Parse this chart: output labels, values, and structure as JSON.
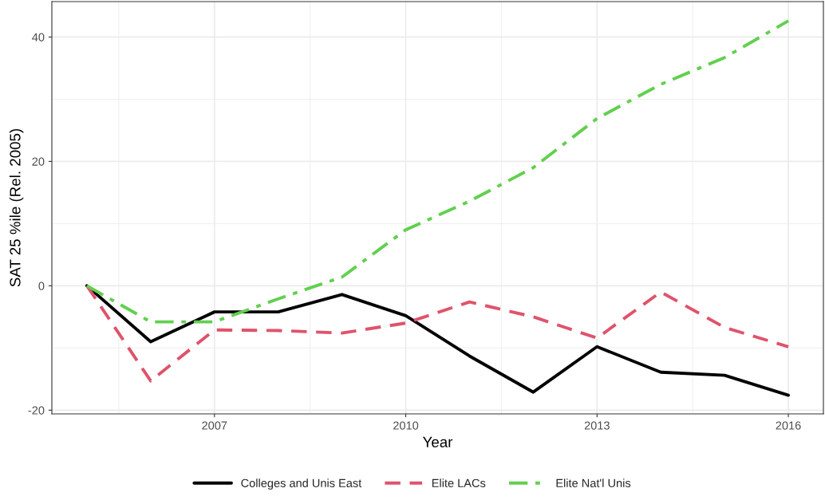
{
  "chart_data": {
    "type": "line",
    "xlabel": "Year",
    "ylabel": "SAT 25 %ile (Rel. 2005)",
    "x": [
      2005,
      2006,
      2007,
      2008,
      2009,
      2010,
      2011,
      2012,
      2013,
      2014,
      2015,
      2016
    ],
    "series": [
      {
        "name": "Colleges and Unis East",
        "color": "#000000",
        "line_style": "solid",
        "values": [
          0,
          -9.0,
          -4.2,
          -4.2,
          -1.4,
          -4.8,
          -11.3,
          -17.1,
          -9.8,
          -13.9,
          -14.4,
          -17.6
        ]
      },
      {
        "name": "Elite LACs",
        "color": "#df536b",
        "line_style": "dashed",
        "values": [
          0,
          -15.3,
          -7.1,
          -7.2,
          -7.6,
          -6.0,
          -2.6,
          -5.0,
          -8.4,
          -1.0,
          -6.7,
          -9.8
        ]
      },
      {
        "name": "Elite Nat'l Unis",
        "color": "#61d04f",
        "line_style": "dashdot",
        "values": [
          0,
          -5.8,
          -5.8,
          -2.1,
          1.4,
          9.0,
          13.6,
          19.0,
          26.9,
          32.4,
          36.7,
          42.6
        ]
      }
    ],
    "xlim": [
      2004.45,
      2016.55
    ],
    "xticks": [
      2007,
      2010,
      2013,
      2016
    ],
    "ylim": [
      -20.6,
      45.7
    ],
    "yticks": [
      -20,
      0,
      20,
      40
    ],
    "grid": true,
    "legend": "bottom"
  }
}
